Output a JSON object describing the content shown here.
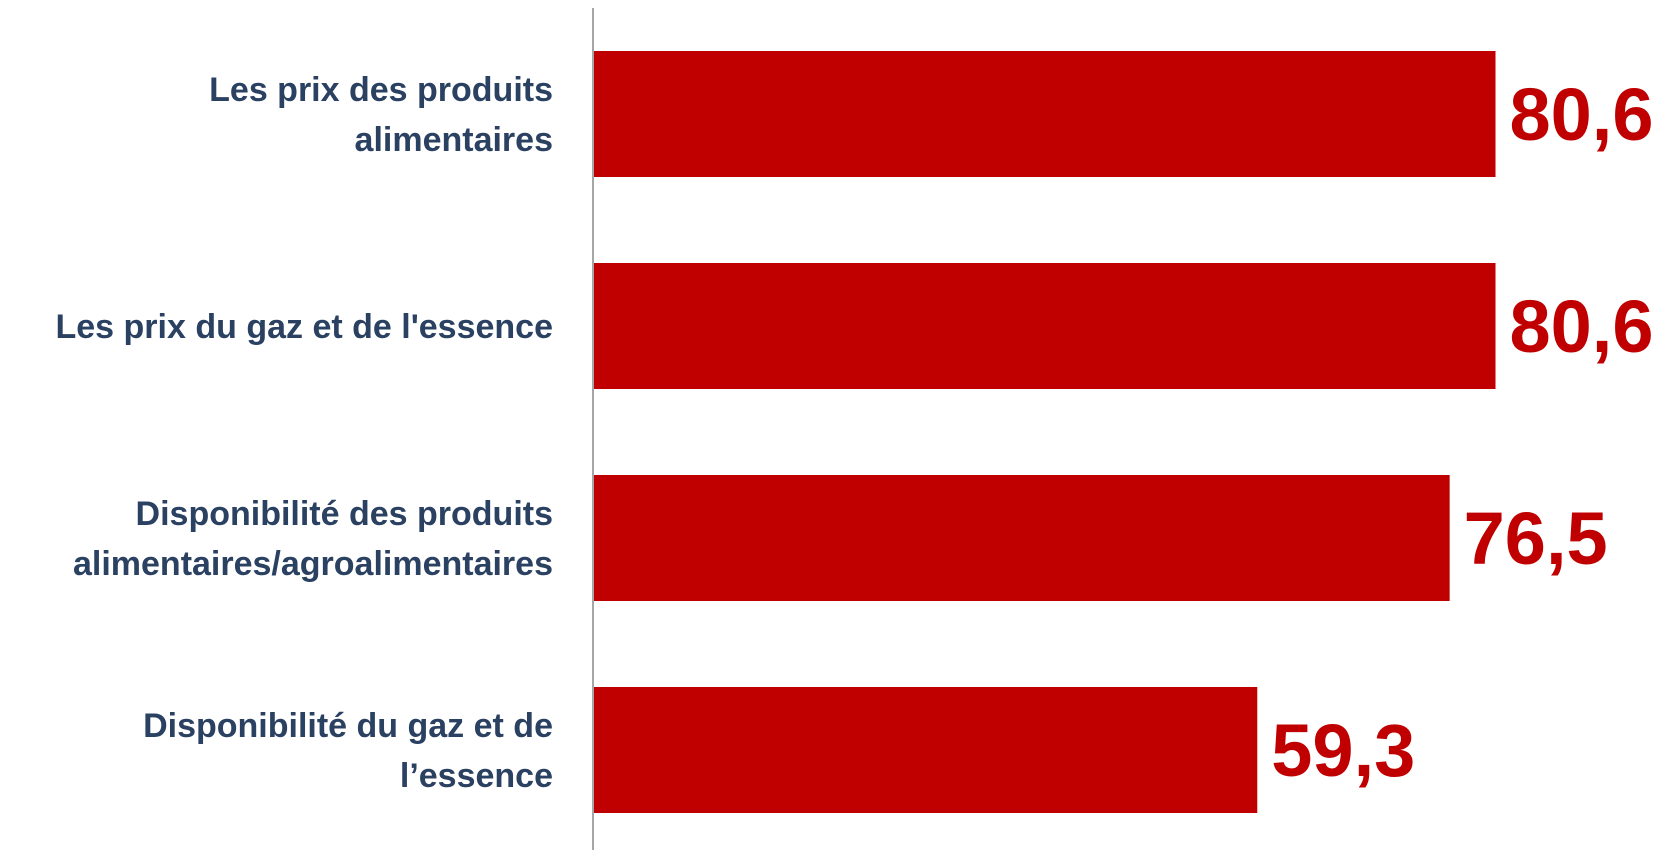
{
  "chart_data": {
    "type": "bar",
    "orientation": "horizontal",
    "categories": [
      [
        "Les prix des produits",
        "alimentaires"
      ],
      [
        "Les prix du gaz et de l'essence"
      ],
      [
        "Disponibilité des produits",
        "alimentaires/agroalimentaires"
      ],
      [
        "Disponibilité du gaz et de",
        "l’essence"
      ]
    ],
    "values": [
      80.6,
      80.6,
      76.5,
      59.3
    ],
    "value_labels": [
      "80,6",
      "80,6",
      "76,5",
      "59,3"
    ],
    "xlim": [
      0,
      100
    ],
    "grid": false,
    "legend": "none",
    "colors": {
      "bar": "#c00000",
      "value_label": "#c00000",
      "category_label": "#2b4162",
      "axis": "#a6a6a6"
    }
  }
}
